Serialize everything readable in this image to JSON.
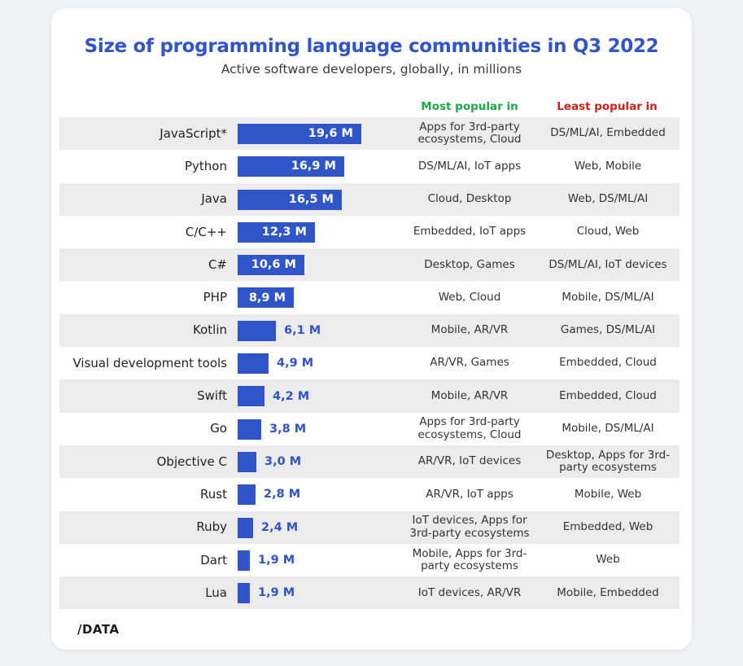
{
  "title": "Size of programming language communities in Q3 2022",
  "subtitle": "Active software developers, globally, in millions",
  "columns": {
    "most": "Most popular in",
    "least": "Least popular in"
  },
  "colors": {
    "bar": "#2f55c8",
    "most": "#1aa84b",
    "least": "#d51c1c",
    "shaded_row": "#ececec"
  },
  "logo": "/DATA",
  "chart_data": {
    "type": "bar",
    "orientation": "horizontal",
    "title": "Size of programming language communities in Q3 2022",
    "subtitle": "Active software developers, globally, in millions",
    "categories": [
      "JavaScript*",
      "Python",
      "Java",
      "C/C++",
      "C#",
      "PHP",
      "Kotlin",
      "Visual development tools",
      "Swift",
      "Go",
      "Objective C",
      "Rust",
      "Ruby",
      "Dart",
      "Lua"
    ],
    "values": [
      19.6,
      16.9,
      16.5,
      12.3,
      10.6,
      8.9,
      6.1,
      4.9,
      4.2,
      3.8,
      3.0,
      2.8,
      2.4,
      1.9,
      1.9
    ],
    "value_labels": [
      "19,6 M",
      "16,9 M",
      "16,5 M",
      "12,3 M",
      "10,6 M",
      "8,9 M",
      "6,1 M",
      "4,9 M",
      "4,2 M",
      "3,8 M",
      "3,0 M",
      "2,8 M",
      "2,4 M",
      "1,9 M",
      "1,9 M"
    ],
    "most_popular_in": [
      "Apps for 3rd-party ecosystems, Cloud",
      "DS/ML/AI, IoT apps",
      "Cloud, Desktop",
      "Embedded, IoT apps",
      "Desktop, Games",
      "Web, Cloud",
      "Mobile, AR/VR",
      "AR/VR, Games",
      "Mobile, AR/VR",
      "Apps for 3rd-party ecosystems, Cloud",
      "AR/VR, IoT devices",
      "AR/VR, IoT apps",
      "IoT devices, Apps for 3rd-party ecosystems",
      "Mobile, Apps for 3rd-party ecosystems",
      "IoT devices, AR/VR"
    ],
    "least_popular_in": [
      "DS/ML/AI, Embedded",
      "Web, Mobile",
      "Web, DS/ML/AI",
      "Cloud, Web",
      "DS/ML/AI, IoT devices",
      "Mobile, DS/ML/AI",
      "Games, DS/ML/AI",
      "Embedded, Cloud",
      "Embedded, Cloud",
      "Mobile, DS/ML/AI",
      "Desktop, Apps for 3rd-party ecosystems",
      "Mobile, Web",
      "Embedded, Web",
      "Web",
      "Mobile, Embedded"
    ],
    "xlim": [
      0,
      20
    ],
    "grid": false,
    "legend": "none"
  }
}
